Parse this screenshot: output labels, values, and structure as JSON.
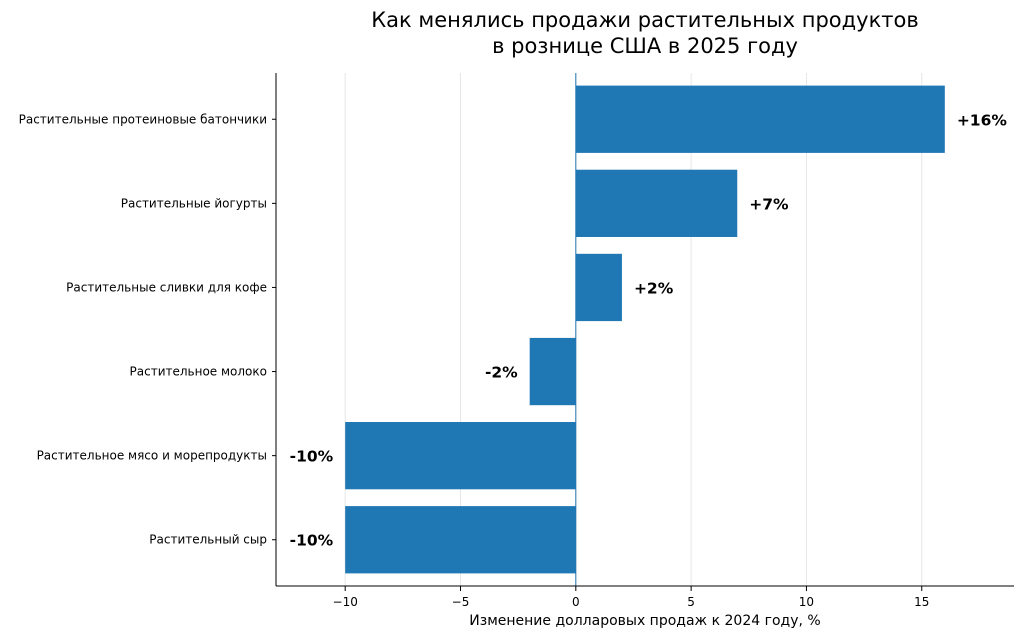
{
  "chart_data": {
    "type": "bar",
    "orientation": "horizontal",
    "title_lines": [
      "Как менялись продажи растительных продуктов",
      "в рознице США в 2025 году"
    ],
    "xlabel": "Изменение долларовых продаж к 2024 году, %",
    "ylabel": "",
    "categories": [
      "Растительные протеиновые батончики",
      "Растительные йогурты",
      "Растительные сливки для кофе",
      "Растительное молоко",
      "Растительное мясо и морепродукты",
      "Растительный сыр"
    ],
    "values": [
      16,
      7,
      2,
      -2,
      -10,
      -10
    ],
    "value_labels": [
      "+16%",
      "+7%",
      "+2%",
      "-2%",
      "-10%",
      "-10%"
    ],
    "x_ticks": [
      -10,
      -5,
      0,
      5,
      10,
      15
    ],
    "x_tick_labels": [
      "−10",
      "−5",
      "0",
      "5",
      "10",
      "15"
    ],
    "xlim": [
      -13,
      19
    ],
    "grid": "vertical",
    "bar_color": "#1f77b4",
    "zero_line_color": "#1f77b4"
  }
}
